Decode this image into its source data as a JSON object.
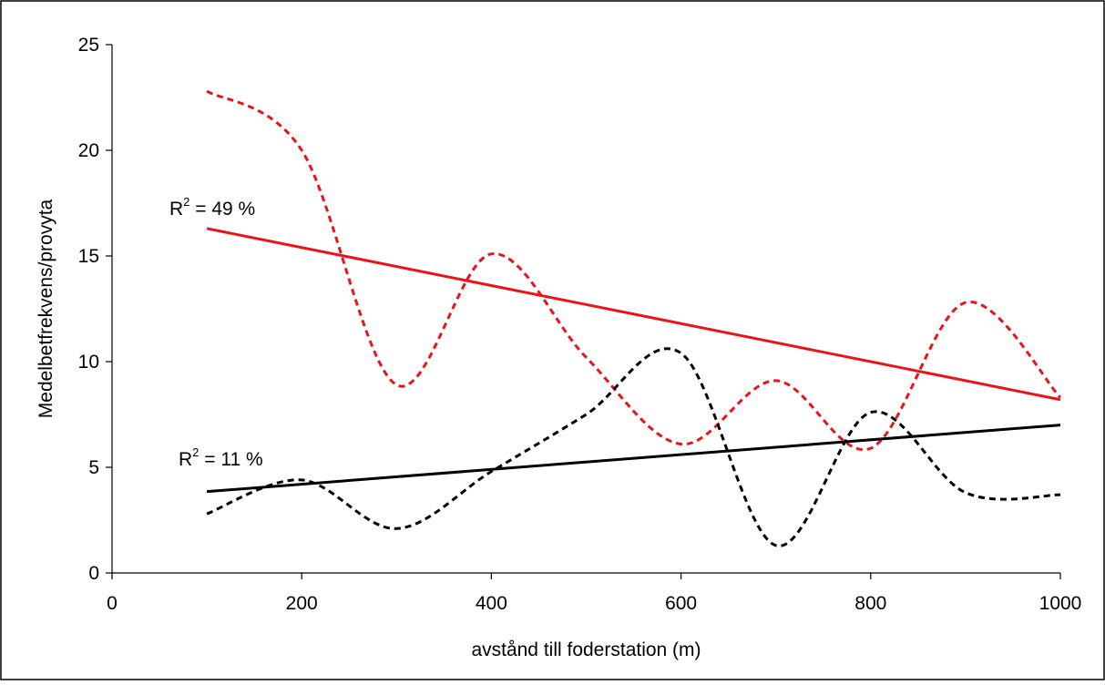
{
  "chart_data": {
    "type": "line",
    "xlabel": "avstånd till foderstation (m)",
    "ylabel": "Medelbetfrekvens/provyta",
    "xlim": [
      0,
      1000
    ],
    "ylim": [
      0,
      25
    ],
    "x_ticks": [
      "0",
      "200",
      "400",
      "600",
      "800",
      "1000"
    ],
    "y_ticks": [
      "0",
      "5",
      "10",
      "15",
      "20",
      "25"
    ],
    "grid": false,
    "legend": "none",
    "series": [
      {
        "color": "#e8141b",
        "style": "dashed-smooth",
        "x": [
          100,
          200,
          300,
          400,
          500,
          600,
          700,
          800,
          900,
          1000
        ],
        "y": [
          22.8,
          20.0,
          8.9,
          15.1,
          10.2,
          6.1,
          9.1,
          5.9,
          12.8,
          8.3
        ]
      },
      {
        "color": "#000000",
        "style": "dashed-smooth",
        "x": [
          100,
          200,
          300,
          400,
          500,
          600,
          700,
          800,
          900,
          1000
        ],
        "y": [
          2.8,
          4.4,
          2.1,
          4.8,
          7.5,
          10.4,
          1.3,
          7.6,
          3.8,
          3.7
        ]
      },
      {
        "color": "#e8141b",
        "style": "solid-trend",
        "x": [
          100,
          1000
        ],
        "y": [
          16.3,
          8.2
        ]
      },
      {
        "color": "#000000",
        "style": "solid-trend",
        "x": [
          100,
          1000
        ],
        "y": [
          3.85,
          7.0
        ]
      }
    ],
    "annotations": [
      {
        "text": "R2 = 49 %",
        "prefix": "R",
        "sup": "2",
        "rest": " = 49 %"
      },
      {
        "text": "R2 = 11 %",
        "prefix": "R",
        "sup": "2",
        "rest": " = 11 %"
      }
    ]
  }
}
